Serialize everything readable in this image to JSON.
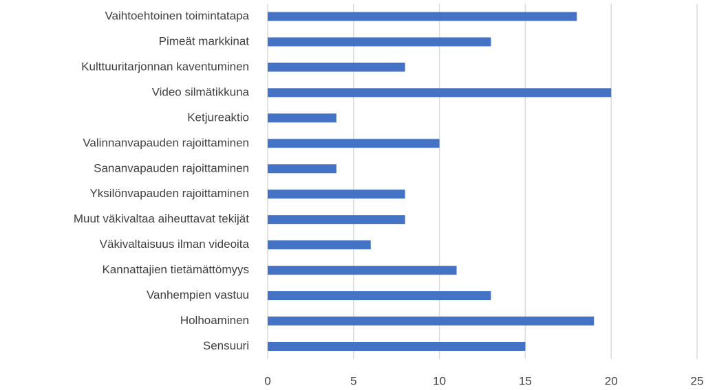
{
  "chart_data": {
    "type": "bar",
    "orientation": "horizontal",
    "categories": [
      "Vaihtoehtoinen toimintatapa",
      "Pimeät markkinat",
      "Kulttuuritarjonnan kaventuminen",
      "Video silmätikkuna",
      "Ketjureaktio",
      "Valinnanvapauden rajoittaminen",
      "Sananvapauden rajoittaminen",
      "Yksilönvapauden rajoittaminen",
      "Muut väkivaltaa aiheuttavat tekijät",
      "Väkivaltaisuus ilman videoita",
      "Kannattajien tietämättömyys",
      "Vanhempien vastuu",
      "Holhoaminen",
      "Sensuuri"
    ],
    "values": [
      18,
      13,
      8,
      20,
      4,
      10,
      4,
      8,
      8,
      6,
      11,
      13,
      19,
      15
    ],
    "color": "#4472c4",
    "xlim": [
      0,
      25
    ],
    "xticks": [
      0,
      5,
      10,
      15,
      20,
      25
    ],
    "grid": true
  }
}
